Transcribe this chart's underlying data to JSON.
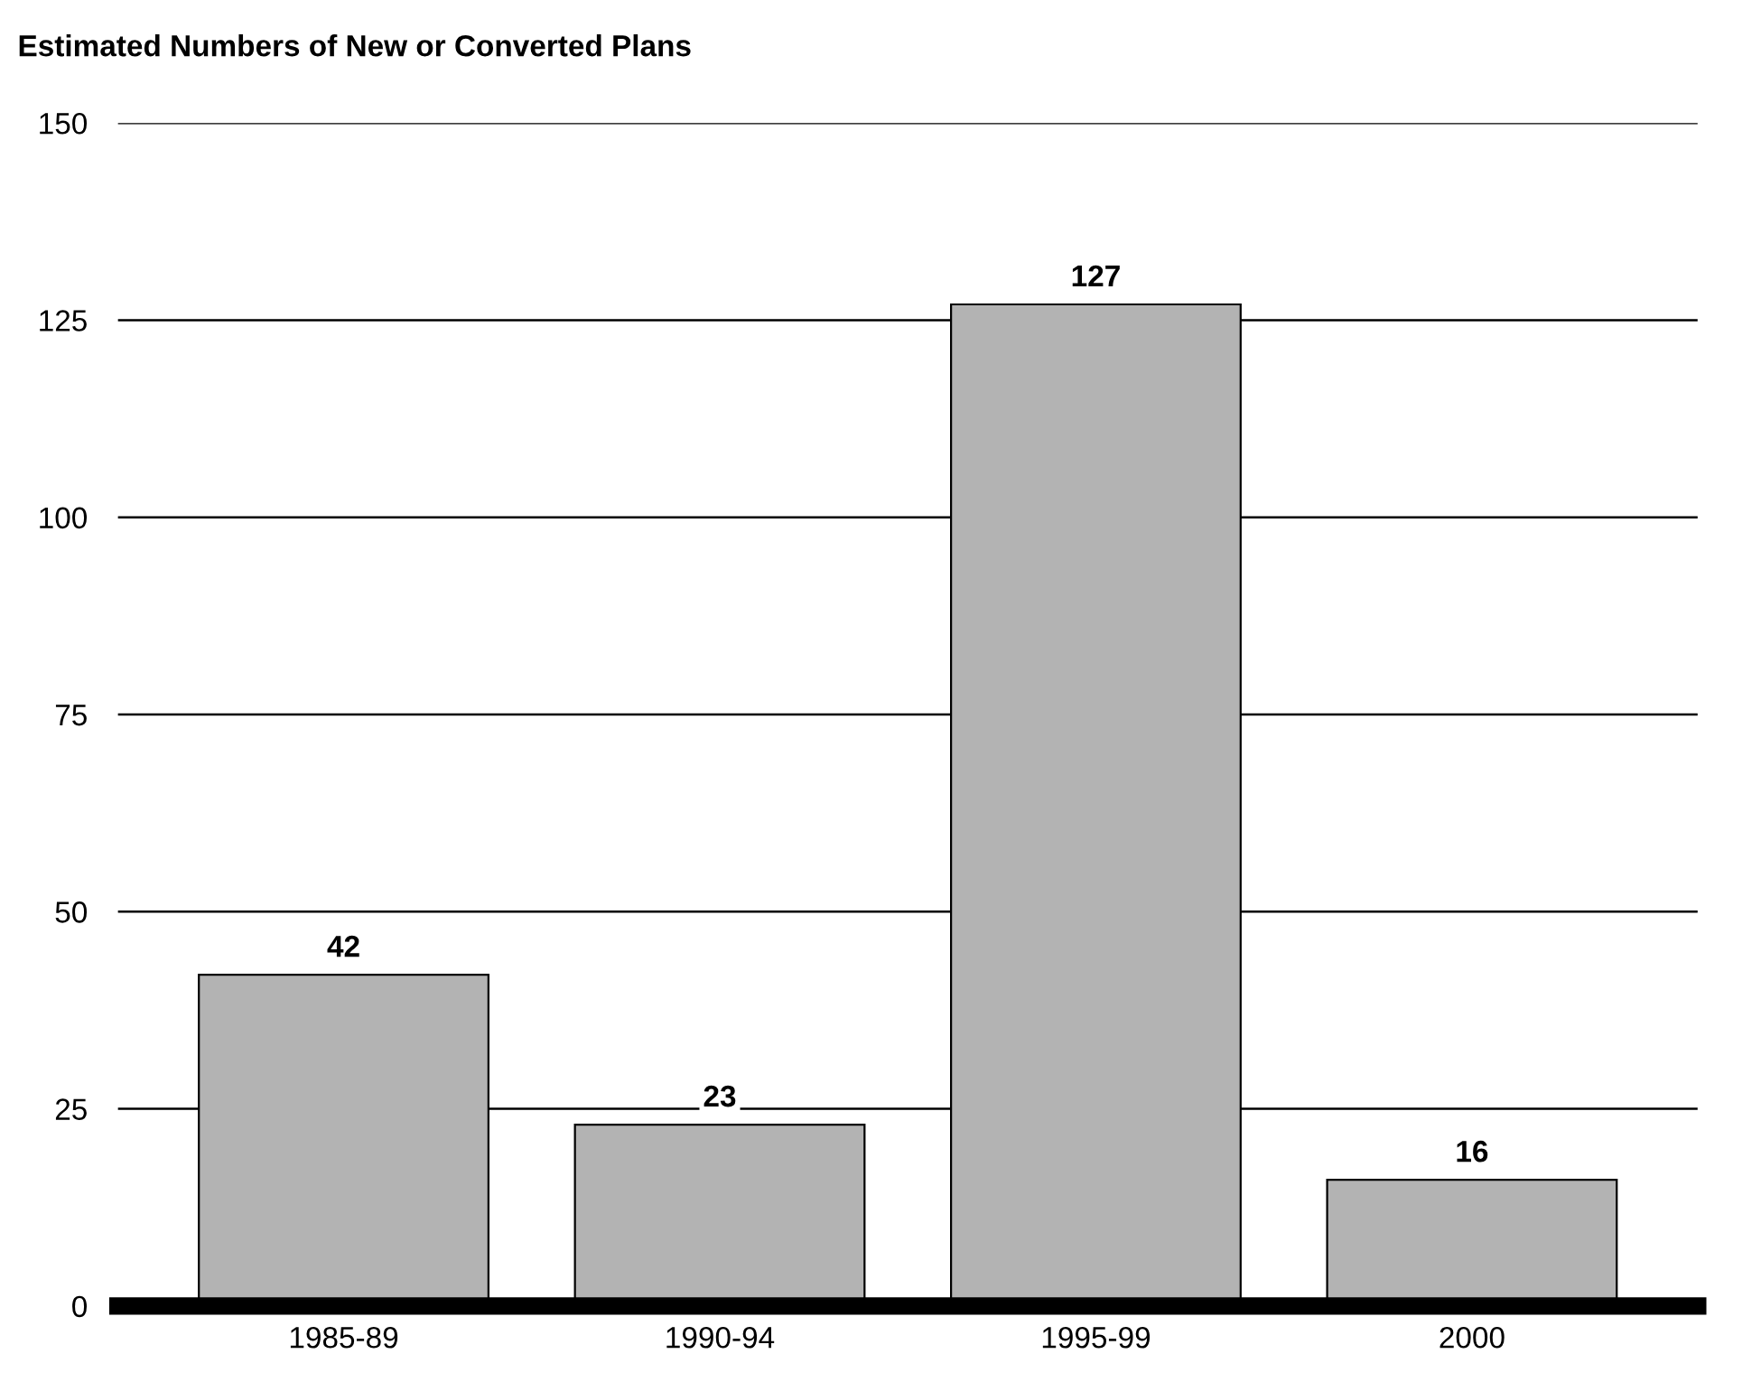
{
  "chart_data": {
    "type": "bar",
    "title": "Estimated Numbers of New or Converted Plans",
    "categories": [
      "1985-89",
      "1990-94",
      "1995-99",
      "2000"
    ],
    "values": [
      42,
      23,
      127,
      16
    ],
    "color": "#b3b3b3",
    "ylim": [
      0,
      150
    ],
    "yticks": [
      0,
      25,
      50,
      75,
      100,
      125,
      150
    ],
    "grid": "y",
    "data_labels": true
  }
}
